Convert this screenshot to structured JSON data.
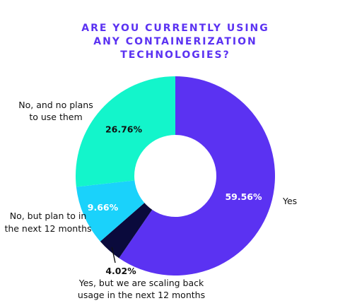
{
  "chart_data": {
    "type": "pie",
    "title_lines": [
      "ARE YOU CURRENTLY USING",
      "ANY CONTAINERIZATION",
      "TECHNOLOGIES?"
    ],
    "categories": [
      "Yes",
      "Yes, but we are scaling back usage in the next 12 months",
      "No, but plan to in the next 12 months",
      "No, and no plans to use them"
    ],
    "label_lines": [
      [
        "Yes"
      ],
      [
        "Yes, but we are scaling back",
        "usage in the next 12 months"
      ],
      [
        "No, but plan to in",
        "the next 12 months"
      ],
      [
        "No, and no plans",
        "to use them"
      ]
    ],
    "values": [
      59.56,
      4.02,
      9.66,
      26.76
    ],
    "value_labels": [
      "59.56%",
      "4.02%",
      "9.66%",
      "26.76%"
    ],
    "colors": [
      "#5b32f2",
      "#0a0a3c",
      "#1ad2fb",
      "#13f5cb"
    ],
    "value_label_colors": [
      "#ffffff",
      "#111111",
      "#ffffff",
      "#111111"
    ],
    "donut": true,
    "legend": "none"
  }
}
